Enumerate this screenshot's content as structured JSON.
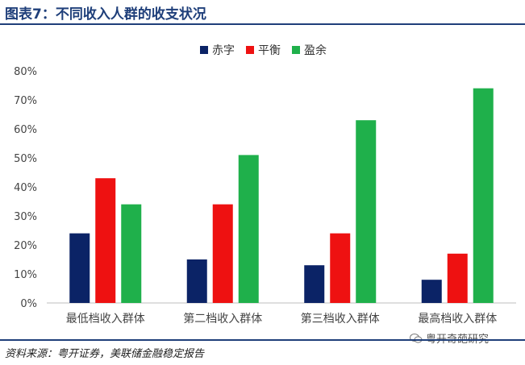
{
  "header": {
    "title": "图表7：不同收入人群的收支状况"
  },
  "footer": {
    "source": "资料来源：粤开证券，美联储金融稳定报告",
    "watermark": "粤开奇葩研究"
  },
  "chart_data": {
    "type": "bar",
    "categories": [
      "最低档收入群体",
      "第二档收入群体",
      "第三档收入群体",
      "最高档收入群体"
    ],
    "series": [
      {
        "name": "赤字",
        "color": "#0b2366",
        "values": [
          24,
          15,
          13,
          8
        ]
      },
      {
        "name": "平衡",
        "color": "#ee1111",
        "values": [
          43,
          34,
          24,
          17
        ]
      },
      {
        "name": "盈余",
        "color": "#1fb04b",
        "values": [
          34,
          51,
          63,
          74
        ]
      }
    ],
    "ylim": [
      0,
      80
    ],
    "yticks": [
      "0%",
      "10%",
      "20%",
      "30%",
      "40%",
      "50%",
      "60%",
      "70%",
      "80%"
    ],
    "ytick_values": [
      0,
      10,
      20,
      30,
      40,
      50,
      60,
      70,
      80
    ],
    "legend_position": "top-center",
    "grid": false
  }
}
